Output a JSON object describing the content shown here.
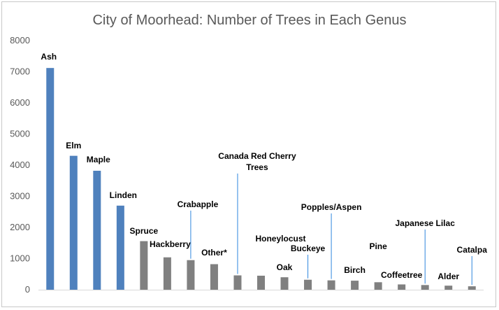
{
  "chart_data": {
    "type": "bar",
    "title": "City of Moorhead: Number of Trees in Each Genus",
    "xlabel": "",
    "ylabel": "",
    "ylim": [
      0,
      8000
    ],
    "yticks": [
      "0",
      "1000",
      "2000",
      "3000",
      "4000",
      "5000",
      "6000",
      "7000",
      "8000"
    ],
    "grid": false,
    "legend": "none",
    "colors": {
      "highlight": "#4f81bd",
      "other": "#808080",
      "leader": "#2e86de",
      "axis": "#d9d9d9"
    },
    "categories": [
      "Ash",
      "Elm",
      "Maple",
      "Linden",
      "Spruce",
      "Hackberry",
      "Crabapple",
      "Other*",
      "Canada Red Cherry Trees",
      "Honeylocust",
      "Oak",
      "Buckeye",
      "Popples/Aspen",
      "Birch",
      "Pine",
      "Coffeetree",
      "Japanese Lilac",
      "Alder",
      "Catalpa"
    ],
    "values": [
      7120,
      4300,
      3820,
      2700,
      1560,
      1040,
      950,
      820,
      460,
      450,
      400,
      320,
      300,
      290,
      240,
      170,
      150,
      130,
      110
    ],
    "highlighted": [
      true,
      true,
      true,
      true,
      false,
      false,
      false,
      false,
      false,
      false,
      false,
      false,
      false,
      false,
      false,
      false,
      false,
      false,
      false
    ],
    "data_labels": [
      "Ash",
      "Elm",
      "Maple",
      "Linden",
      "Spruce",
      "Hackberry",
      "Crabapple",
      "Other*",
      "Canada Red Cherry\nTrees",
      "Honeylocust",
      "Oak",
      "Buckeye",
      "Popples/Aspen",
      "Birch",
      "Pine",
      "Coffeetree",
      "Japanese Lilac",
      "Alder",
      "Catalpa"
    ]
  }
}
